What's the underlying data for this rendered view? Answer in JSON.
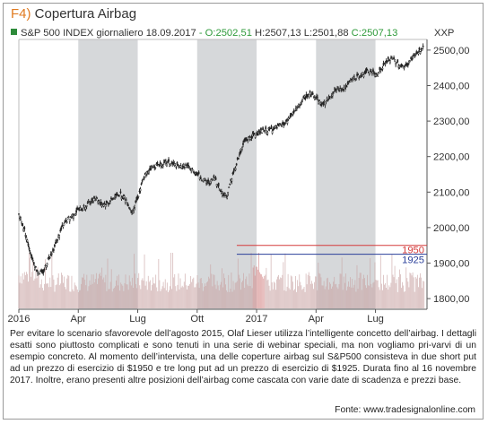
{
  "header": {
    "figure_number": "F4)",
    "figure_title": "Copertura Airbag",
    "instrument": "S&P 500 INDEX giornaliero 18.09.2017",
    "open": "- O:2502,51",
    "high": "H:2507,13",
    "low": "L:2501,88",
    "close": "C:2507,13",
    "exchange": "XXP"
  },
  "caption": {
    "text": "Per evitare lo scenario sfavorevole dell’agosto 2015, Olaf Lieser utilizza l’intelligente concetto dell’airbag. I dettagli esatti sono piuttosto complicati e sono tenuti in una serie di webinar speciali, ma non vogliamo pri-varvi di un esempio concreto. Al momento dell’intervista, una delle coperture airbag sul S&P500 consisteva in due short put ad un prezzo di esercizio di $1950 e tre long put ad un prezzo di esercizio di $1925. Durata fino al 16 novembre 2017. Inoltre, erano presenti altre posizioni dell’airbag come cascata con varie date di scadenza e prezzi base."
  },
  "source": "Fonte: www.tradesignalonline.com",
  "chart_data": {
    "type": "candlestick",
    "x_tick_labels": [
      "2016",
      "Apr",
      "Lug",
      "Ott",
      "2017",
      "Apr",
      "Lug"
    ],
    "x_tick_months": [
      0,
      3,
      6,
      9,
      12,
      15,
      18
    ],
    "x_range_months": [
      0,
      20.6
    ],
    "y_tick_labels": [
      "1800,00",
      "1900,00",
      "2000,00",
      "2100,00",
      "2200,00",
      "2300,00",
      "2400,00",
      "2500,00"
    ],
    "y_ticks": [
      1800,
      1900,
      2000,
      2100,
      2200,
      2300,
      2400,
      2500
    ],
    "ylim": [
      1770,
      2530
    ],
    "shaded_periods_months": [
      [
        3,
        6
      ],
      [
        9,
        12
      ],
      [
        15,
        18
      ]
    ],
    "horizontal_levels": [
      {
        "label": "1950",
        "value": 1950,
        "color": "#d43a3a"
      },
      {
        "label": "1925",
        "value": 1925,
        "color": "#2a3f9a"
      }
    ],
    "close_series": {
      "x_months": [
        0,
        0.3,
        0.6,
        0.9,
        1.2,
        1.5,
        1.8,
        2.1,
        2.4,
        2.7,
        3.0,
        3.3,
        3.6,
        3.9,
        4.2,
        4.5,
        4.8,
        5.1,
        5.4,
        5.7,
        6.0,
        6.3,
        6.6,
        6.9,
        7.2,
        7.5,
        7.8,
        8.1,
        8.4,
        8.7,
        9.0,
        9.3,
        9.6,
        9.9,
        10.2,
        10.5,
        10.8,
        11.1,
        11.4,
        11.7,
        12.0,
        12.3,
        12.6,
        12.9,
        13.2,
        13.5,
        13.8,
        14.1,
        14.4,
        14.7,
        15.0,
        15.3,
        15.6,
        15.9,
        16.2,
        16.5,
        16.8,
        17.1,
        17.4,
        17.7,
        18.0,
        18.3,
        18.6,
        18.9,
        19.2,
        19.5,
        19.8,
        20.1,
        20.4
      ],
      "values": [
        2040,
        1990,
        1925,
        1880,
        1870,
        1915,
        1945,
        1990,
        2020,
        2035,
        2050,
        2055,
        2075,
        2085,
        2065,
        2070,
        2085,
        2095,
        2080,
        2045,
        2085,
        2140,
        2165,
        2175,
        2180,
        2182,
        2178,
        2170,
        2175,
        2165,
        2150,
        2135,
        2125,
        2140,
        2100,
        2090,
        2150,
        2200,
        2245,
        2255,
        2265,
        2270,
        2275,
        2280,
        2285,
        2295,
        2320,
        2340,
        2365,
        2375,
        2370,
        2345,
        2360,
        2385,
        2390,
        2395,
        2415,
        2425,
        2435,
        2440,
        2430,
        2445,
        2470,
        2475,
        2460,
        2450,
        2475,
        2490,
        2505
      ]
    },
    "volume_bars": true,
    "colors": {
      "up": "#222222",
      "down": "#222222",
      "shade": "#d6d8da",
      "grid": "#cfcfcf"
    }
  }
}
